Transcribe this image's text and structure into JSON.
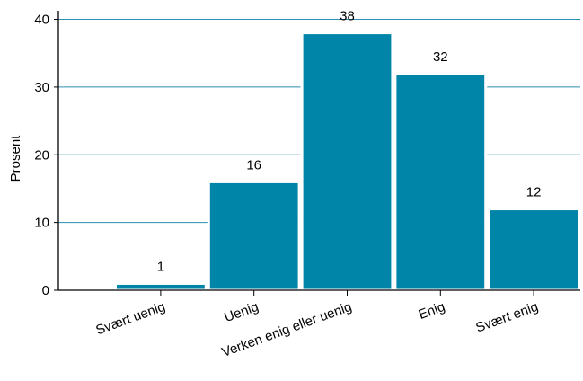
{
  "chart_data": {
    "type": "bar",
    "title": "",
    "xlabel": "",
    "ylabel": "Prosent",
    "categories": [
      "Svært uenig",
      "Uenig",
      "Verken enig eller uenig",
      "Enig",
      "Svært enig"
    ],
    "values": [
      1,
      16,
      38,
      32,
      12
    ],
    "data_labels": [
      "1",
      "16",
      "38",
      "32",
      "12"
    ],
    "ylim": [
      0,
      41
    ],
    "yticks": [
      0,
      10,
      20,
      30,
      40
    ],
    "grid": true,
    "legend": "none",
    "colors": {
      "bar": "#0084a8",
      "grid": "#2a8fb0",
      "axis": "#000000"
    }
  }
}
